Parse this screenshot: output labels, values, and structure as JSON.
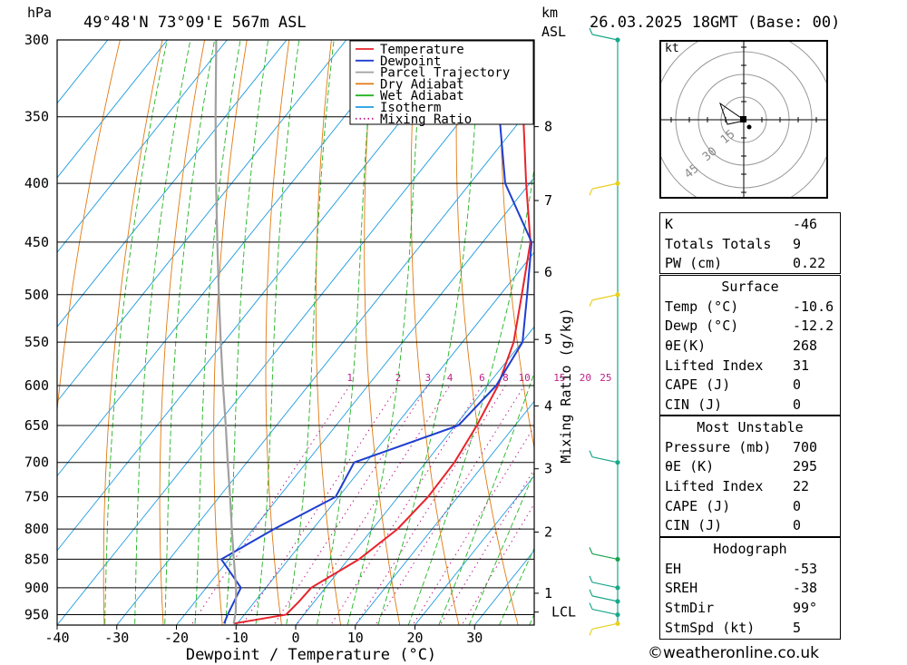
{
  "header": {
    "unit_hpa": "hPa",
    "location": "49°48'N  73°09'E  567m  ASL",
    "unit_km": "km",
    "unit_asl": "ASL",
    "datetime": "26.03.2025  18GMT  (Base: 00)"
  },
  "legend": [
    {
      "label": "Temperature",
      "color": "#e8232b",
      "style": "solid"
    },
    {
      "label": "Dewpoint",
      "color": "#1f3fd0",
      "style": "solid"
    },
    {
      "label": "Parcel Trajectory",
      "color": "#a0a0a0",
      "style": "solid"
    },
    {
      "label": "Dry Adiabat",
      "color": "#e07a10",
      "style": "solid"
    },
    {
      "label": "Wet Adiabat",
      "color": "#22b422",
      "style": "solid"
    },
    {
      "label": "Isotherm",
      "color": "#1e9be0",
      "style": "solid"
    },
    {
      "label": "Mixing Ratio",
      "color": "#c0208a",
      "style": "dotted"
    }
  ],
  "chart_data": {
    "type": "line",
    "xlabel": "Dewpoint / Temperature (°C)",
    "ylabel": "hPa",
    "y2label": "Mixing Ratio (g/kg)",
    "xlim": [
      -40,
      40
    ],
    "ylim": [
      300,
      970
    ],
    "y_scale": "log",
    "grid": true,
    "x_ticks": [
      -40,
      -30,
      -20,
      -10,
      0,
      10,
      20,
      30
    ],
    "x_tick_labels": [
      "-40",
      "-30",
      "-20",
      "-10",
      "0",
      "10",
      "20",
      "30"
    ],
    "pressure_levels": [
      300,
      350,
      400,
      450,
      500,
      550,
      600,
      650,
      700,
      750,
      800,
      850,
      900,
      950
    ],
    "km_ticks": [
      {
        "label": "8",
        "p": 357
      },
      {
        "label": "7",
        "p": 414
      },
      {
        "label": "6",
        "p": 478
      },
      {
        "label": "5",
        "p": 547
      },
      {
        "label": "4",
        "p": 625
      },
      {
        "label": "3",
        "p": 709
      },
      {
        "label": "2",
        "p": 805
      },
      {
        "label": "1",
        "p": 910
      },
      {
        "label": "LCL",
        "p": 945
      }
    ],
    "mixing_ratio_labels": [
      "1",
      "2",
      "3",
      "4",
      "6",
      "8",
      "10",
      "15",
      "20",
      "25"
    ],
    "series": [
      {
        "name": "Temperature",
        "points": [
          [
            967,
            -10.6
          ],
          [
            950,
            -3.0
          ],
          [
            925,
            -2.6
          ],
          [
            900,
            -2.4
          ],
          [
            850,
            1.8
          ],
          [
            800,
            4.2
          ],
          [
            750,
            5.0
          ],
          [
            700,
            4.8
          ],
          [
            650,
            3.6
          ],
          [
            600,
            1.8
          ],
          [
            550,
            -1.4
          ],
          [
            500,
            -6.4
          ],
          [
            450,
            -12.0
          ],
          [
            400,
            -20.6
          ],
          [
            350,
            -30.0
          ],
          [
            300,
            -41.0
          ]
        ]
      },
      {
        "name": "Dewpoint",
        "points": [
          [
            967,
            -12.2
          ],
          [
            950,
            -12.8
          ],
          [
            900,
            -14.2
          ],
          [
            850,
            -21.3
          ],
          [
            800,
            -16.5
          ],
          [
            750,
            -10.5
          ],
          [
            700,
            -12.0
          ],
          [
            650,
            0.5
          ],
          [
            600,
            1.5
          ],
          [
            550,
            0.1
          ],
          [
            500,
            -5.5
          ],
          [
            450,
            -11.8
          ],
          [
            400,
            -24.1
          ],
          [
            350,
            -34.0
          ],
          [
            300,
            -44.0
          ]
        ]
      },
      {
        "name": "Parcel Trajectory",
        "points": [
          [
            967,
            -10.6
          ],
          [
            945,
            -11.8
          ],
          [
            900,
            -15.0
          ],
          [
            850,
            -19.2
          ],
          [
            800,
            -23.6
          ],
          [
            750,
            -28.2
          ],
          [
            700,
            -33.2
          ],
          [
            650,
            -38.5
          ],
          [
            600,
            -44.3
          ],
          [
            550,
            -50.5
          ],
          [
            500,
            -57.2
          ],
          [
            450,
            -64.5
          ],
          [
            400,
            -72.6
          ],
          [
            350,
            -81.6
          ],
          [
            300,
            -91.8
          ]
        ]
      }
    ]
  },
  "wind_profile": [
    {
      "p": 300,
      "color": "#1aa88a"
    },
    {
      "p": 400,
      "color": "#e8d020"
    },
    {
      "p": 500,
      "color": "#e8d020"
    },
    {
      "p": 700,
      "color": "#1aa88a"
    },
    {
      "p": 850,
      "color": "#1aa050"
    },
    {
      "p": 900,
      "color": "#1aa88a"
    },
    {
      "p": 925,
      "color": "#1aa88a"
    },
    {
      "p": 950,
      "color": "#1aa88a"
    },
    {
      "p": 967,
      "color": "#e8d020"
    }
  ],
  "hodograph": {
    "unit": "kt",
    "ring_labels": [
      "15",
      "30",
      "45"
    ]
  },
  "indices": {
    "general": [
      {
        "label": "K",
        "value": "-46"
      },
      {
        "label": "Totals Totals",
        "value": "9"
      },
      {
        "label": "PW (cm)",
        "value": "0.22"
      }
    ],
    "surface": {
      "title": "Surface",
      "rows": [
        {
          "label": "Temp (°C)",
          "value": "-10.6"
        },
        {
          "label": "Dewp (°C)",
          "value": "-12.2"
        },
        {
          "label": "θE(K)",
          "value": "268"
        },
        {
          "label": "Lifted Index",
          "value": "31"
        },
        {
          "label": "CAPE (J)",
          "value": "0"
        },
        {
          "label": "CIN (J)",
          "value": "0"
        }
      ]
    },
    "most_unstable": {
      "title": "Most Unstable",
      "rows": [
        {
          "label": "Pressure (mb)",
          "value": "700"
        },
        {
          "label": "θE (K)",
          "value": "295"
        },
        {
          "label": "Lifted Index",
          "value": "22"
        },
        {
          "label": "CAPE (J)",
          "value": "0"
        },
        {
          "label": "CIN (J)",
          "value": "0"
        }
      ]
    },
    "hodograph": {
      "title": "Hodograph",
      "rows": [
        {
          "label": "EH",
          "value": "-53"
        },
        {
          "label": "SREH",
          "value": "-38"
        },
        {
          "label": "StmDir",
          "value": "99°"
        },
        {
          "label": "StmSpd (kt)",
          "value": "5"
        }
      ]
    }
  },
  "footer": {
    "copyright": "©weatheronline.co.uk"
  }
}
